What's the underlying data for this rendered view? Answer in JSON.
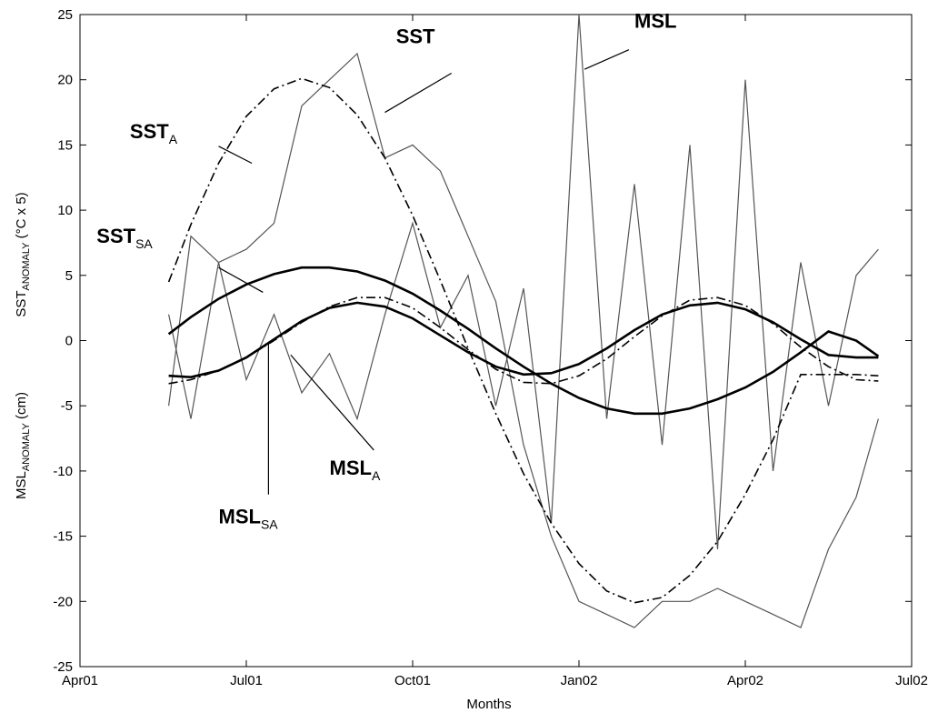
{
  "chart_data": {
    "type": "line",
    "title": "",
    "xlabel": "Months",
    "ylabel_top": "SST_ANOMALY (°C x 5)",
    "ylabel_bottom": "MSL_ANOMALY (cm)",
    "xlim": [
      0,
      15
    ],
    "ylim": [
      -25,
      25
    ],
    "x_ticks": [
      {
        "value": 0,
        "label": "Apr01"
      },
      {
        "value": 3,
        "label": "Jul01"
      },
      {
        "value": 6,
        "label": "Oct01"
      },
      {
        "value": 9,
        "label": "Jan02"
      },
      {
        "value": 12,
        "label": "Apr02"
      },
      {
        "value": 15,
        "label": "Jul02"
      }
    ],
    "y_ticks": [
      -25,
      -20,
      -15,
      -10,
      -5,
      0,
      5,
      10,
      15,
      20,
      25
    ],
    "grid": false,
    "x_units": "months since Apr01",
    "series": [
      {
        "name": "SST",
        "style": "thin-gray",
        "color": "#555555",
        "x": [
          1.6,
          2.0,
          2.5,
          3.0,
          3.5,
          4.0,
          4.5,
          5.0,
          5.5,
          6.0,
          6.5,
          7.0,
          7.5,
          8.0,
          8.5,
          9.0,
          9.5,
          10.0,
          10.5,
          11.0,
          11.5,
          12.0,
          12.5,
          13.0,
          13.5,
          14.0,
          14.4
        ],
        "y": [
          -5,
          8,
          6,
          7,
          9,
          18,
          20,
          22,
          14,
          15,
          13,
          8,
          3,
          -8,
          -15,
          -20,
          -21,
          -22,
          -20,
          -20,
          -19,
          -20,
          -21,
          -22,
          -16,
          -12,
          -6
        ]
      },
      {
        "name": "MSL",
        "style": "thin-gray",
        "color": "#555555",
        "x": [
          1.6,
          2.0,
          2.5,
          3.0,
          3.5,
          4.0,
          4.5,
          5.0,
          5.5,
          6.0,
          6.5,
          7.0,
          7.5,
          8.0,
          8.5,
          9.0,
          9.5,
          10.0,
          10.5,
          11.0,
          11.5,
          12.0,
          12.5,
          13.0,
          13.5,
          14.0,
          14.4
        ],
        "y": [
          2,
          -6,
          6,
          -3,
          2,
          -4,
          -1,
          -6,
          2,
          9,
          1,
          5,
          -5,
          4,
          -14,
          25,
          -6,
          12,
          -8,
          15,
          -16,
          20,
          -10,
          6,
          -5,
          5,
          7
        ]
      },
      {
        "name": "SST_A",
        "style": "dash-dot",
        "color": "#000000",
        "x": [
          1.6,
          2.0,
          2.5,
          3.0,
          3.5,
          4.0,
          4.5,
          5.0,
          5.5,
          6.0,
          6.5,
          7.0,
          7.5,
          8.0,
          8.5,
          9.0,
          9.5,
          10.0,
          10.5,
          11.0,
          11.5,
          12.0,
          12.5,
          13.0,
          13.5,
          14.0,
          14.4
        ],
        "y": [
          4.5,
          8.9,
          13.6,
          17.2,
          19.3,
          20.1,
          19.4,
          17.3,
          14.0,
          9.6,
          4.6,
          -0.6,
          -5.6,
          -10.2,
          -14.0,
          -17.1,
          -19.2,
          -20.1,
          -19.7,
          -18.0,
          -15.4,
          -11.8,
          -7.6,
          -2.6,
          -2.6,
          -2.6,
          -2.7
        ]
      },
      {
        "name": "SST_SA",
        "style": "thick-solid",
        "color": "#000000",
        "x": [
          1.6,
          2.0,
          2.5,
          3.0,
          3.5,
          4.0,
          4.5,
          5.0,
          5.5,
          6.0,
          6.5,
          7.0,
          7.5,
          8.0,
          8.5,
          9.0,
          9.5,
          10.0,
          10.5,
          11.0,
          11.5,
          12.0,
          12.5,
          13.0,
          13.5,
          14.0,
          14.4
        ],
        "y": [
          0.5,
          1.8,
          3.2,
          4.3,
          5.1,
          5.6,
          5.6,
          5.3,
          4.6,
          3.6,
          2.3,
          0.9,
          -0.6,
          -2.0,
          -3.3,
          -4.4,
          -5.2,
          -5.6,
          -5.6,
          -5.2,
          -4.5,
          -3.6,
          -2.4,
          -0.9,
          0.7,
          0.0,
          -1.2
        ]
      },
      {
        "name": "MSL_A",
        "style": "dash-dot",
        "color": "#000000",
        "x": [
          1.6,
          2.0,
          2.5,
          3.0,
          3.5,
          4.0,
          4.5,
          5.0,
          5.5,
          6.0,
          6.5,
          7.0,
          7.5,
          8.0,
          8.5,
          9.0,
          9.5,
          10.0,
          10.5,
          11.0,
          11.5,
          12.0,
          12.5,
          13.0,
          13.5,
          14.0,
          14.4
        ],
        "y": [
          -3.3,
          -3.0,
          -2.3,
          -1.3,
          0.0,
          1.4,
          2.6,
          3.3,
          3.3,
          2.5,
          1.0,
          -0.7,
          -2.2,
          -3.2,
          -3.3,
          -2.7,
          -1.4,
          0.3,
          1.9,
          3.1,
          3.3,
          2.7,
          1.3,
          -0.5,
          -2.0,
          -3.0,
          -3.1
        ]
      },
      {
        "name": "MSL_SA",
        "style": "thick-solid",
        "color": "#000000",
        "x": [
          1.6,
          2.0,
          2.5,
          3.0,
          3.5,
          4.0,
          4.5,
          5.0,
          5.5,
          6.0,
          6.5,
          7.0,
          7.5,
          8.0,
          8.5,
          9.0,
          9.5,
          10.0,
          10.5,
          11.0,
          11.5,
          12.0,
          12.5,
          13.0,
          13.5,
          14.0,
          14.4
        ],
        "y": [
          -2.7,
          -2.8,
          -2.3,
          -1.3,
          0.1,
          1.5,
          2.5,
          2.9,
          2.6,
          1.7,
          0.4,
          -0.9,
          -2.0,
          -2.6,
          -2.5,
          -1.8,
          -0.6,
          0.8,
          2.0,
          2.7,
          2.9,
          2.4,
          1.4,
          0.1,
          -1.1,
          -1.3,
          -1.3
        ]
      }
    ],
    "annotations": [
      {
        "base": "SST",
        "sub": "",
        "name": "annot-sst",
        "x": 5.7,
        "y": 22.8,
        "tip_x": 5.5,
        "tip_y": 17.5,
        "from_x": 6.7,
        "from_y": 20.5
      },
      {
        "base": "MSL",
        "sub": "",
        "name": "annot-msl",
        "x": 10.0,
        "y": 24.0,
        "tip_x": 9.1,
        "tip_y": 20.8,
        "from_x": 9.9,
        "from_y": 22.3
      },
      {
        "base": "SST",
        "sub": "A",
        "name": "annot-sst-a",
        "x": 0.9,
        "y": 15.5,
        "tip_x": 3.1,
        "tip_y": 13.6,
        "from_x": 2.5,
        "from_y": 14.9
      },
      {
        "base": "SST",
        "sub": "SA",
        "name": "annot-sst-sa",
        "x": 0.3,
        "y": 7.5,
        "tip_x": 3.3,
        "tip_y": 3.7,
        "from_x": 2.5,
        "from_y": 5.6
      },
      {
        "base": "MSL",
        "sub": "A",
        "name": "annot-msl-a",
        "x": 4.5,
        "y": -10.3,
        "tip_x": 3.8,
        "tip_y": -1.1,
        "from_x": 5.3,
        "from_y": -8.4
      },
      {
        "base": "MSL",
        "sub": "SA",
        "name": "annot-msl-sa",
        "x": 2.5,
        "y": -14.0,
        "tip_x": 3.4,
        "tip_y": -0.2,
        "from_x": 3.4,
        "from_y": -11.8
      }
    ]
  }
}
